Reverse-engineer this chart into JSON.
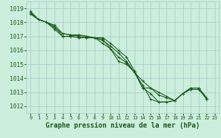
{
  "background_color": "#cceedd",
  "grid_color": "#aacccc",
  "line_color": "#1a5c1a",
  "marker_color": "#1a5c1a",
  "xlabel": "Graphe pression niveau de la mer (hPa)",
  "ylim": [
    1011.5,
    1019.5
  ],
  "xlim": [
    -0.5,
    23.5
  ],
  "yticks": [
    1012,
    1013,
    1014,
    1015,
    1016,
    1017,
    1018,
    1019
  ],
  "xticks": [
    0,
    1,
    2,
    3,
    4,
    5,
    6,
    7,
    8,
    9,
    10,
    11,
    12,
    13,
    14,
    15,
    16,
    17,
    18,
    19,
    20,
    21,
    22,
    23
  ],
  "series": [
    [
      1018.6,
      1018.2,
      1018.0,
      1017.5,
      1017.0,
      1017.0,
      1017.1,
      1017.0,
      1016.9,
      1016.9,
      1016.5,
      1016.0,
      1015.5,
      1014.5,
      1013.3,
      1013.3,
      1013.0,
      1012.7,
      1012.4,
      1012.9,
      1013.2,
      1013.2,
      1012.5,
      null
    ],
    [
      1018.6,
      1018.2,
      1018.0,
      1017.6,
      1017.2,
      1017.1,
      1017.1,
      1017.0,
      1016.9,
      1016.8,
      1016.1,
      1015.2,
      1015.0,
      1014.4,
      1013.5,
      1012.5,
      1012.3,
      1012.3,
      1012.4,
      1012.9,
      1013.3,
      1013.3,
      1012.6,
      null
    ],
    [
      1018.7,
      1018.2,
      1018.0,
      1017.7,
      1017.0,
      1017.0,
      1016.9,
      1016.9,
      1016.9,
      1016.5,
      1016.1,
      1015.5,
      1015.1,
      1014.4,
      1013.3,
      1012.9,
      1012.3,
      1012.3,
      1012.4,
      1012.9,
      1013.3,
      1013.3,
      1012.5,
      null
    ],
    [
      1018.8,
      1018.2,
      1018.0,
      1017.8,
      1017.2,
      1017.1,
      1017.0,
      1016.9,
      1016.9,
      1016.7,
      1016.3,
      1015.8,
      1015.2,
      1014.4,
      1013.8,
      1013.3,
      1012.8,
      1012.6,
      1012.4,
      1012.9,
      1013.3,
      1013.3,
      1012.5,
      null
    ]
  ],
  "marker": "+",
  "markersize": 3,
  "linewidth": 0.8,
  "xlabel_fontsize": 7,
  "ytick_fontsize": 6,
  "xtick_fontsize": 5
}
